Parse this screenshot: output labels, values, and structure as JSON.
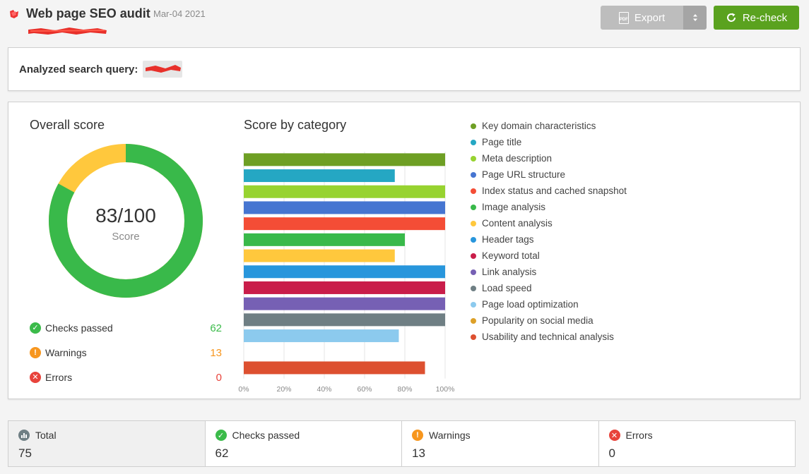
{
  "header": {
    "title": "Web page SEO audit",
    "date": "Mar-04 2021",
    "export_label": "Export",
    "pdf_icon_text": "PDF",
    "recheck_label": "Re-check"
  },
  "query": {
    "label": "Analyzed search query:"
  },
  "overall": {
    "heading": "Overall score",
    "score_text": "83/100",
    "score_label": "Score",
    "score_value": 83,
    "score_max": 100,
    "stats": [
      {
        "label": "Checks passed",
        "value": "62",
        "color": "#3bbb4a",
        "icon": "check-circle-icon"
      },
      {
        "label": "Warnings",
        "value": "13",
        "color": "#f7961e",
        "icon": "warning-circle-icon"
      },
      {
        "label": "Errors",
        "value": "0",
        "color": "#e8433b",
        "icon": "error-circle-icon"
      }
    ]
  },
  "category": {
    "heading": "Score by category"
  },
  "chart_data": {
    "type": "bar",
    "orientation": "horizontal",
    "title": "Score by category",
    "xlim": [
      0,
      100
    ],
    "x_ticks": [
      "0%",
      "20%",
      "40%",
      "60%",
      "80%",
      "100%"
    ],
    "grid": true,
    "legend": "right",
    "categories": [
      "Key domain characteristics",
      "Page title",
      "Meta description",
      "Page URL structure",
      "Index status and cached snapshot",
      "Image analysis",
      "Content analysis",
      "Header tags",
      "Keyword total",
      "Link analysis",
      "Load speed",
      "Page load optimization",
      "Popularity on social media",
      "Usability and technical analysis"
    ],
    "values": [
      100,
      75,
      100,
      100,
      100,
      80,
      75,
      100,
      100,
      100,
      100,
      77,
      0,
      90
    ],
    "colors": [
      "#6e9f24",
      "#25a7c3",
      "#97d330",
      "#4675d1",
      "#f44d36",
      "#39b94a",
      "#ffc83d",
      "#2896dc",
      "#c91d4a",
      "#7660b4",
      "#6f7f84",
      "#8ccaee",
      "#dda028",
      "#dd5030"
    ]
  },
  "summary": [
    {
      "label": "Total",
      "value": "75",
      "color": "#6f7f84",
      "icon": "bar-chart-icon"
    },
    {
      "label": "Checks passed",
      "value": "62",
      "color": "#3bbb4a",
      "icon": "check-circle-icon"
    },
    {
      "label": "Warnings",
      "value": "13",
      "color": "#f7961e",
      "icon": "warning-circle-icon"
    },
    {
      "label": "Errors",
      "value": "0",
      "color": "#e8433b",
      "icon": "error-circle-icon"
    }
  ]
}
